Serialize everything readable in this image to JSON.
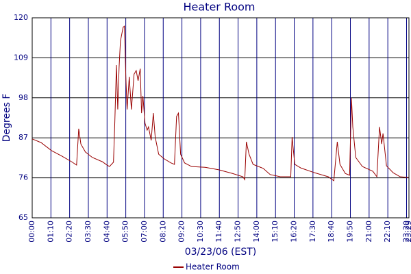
{
  "chart_data": {
    "type": "line",
    "title": "Heater Room",
    "x_label": "03/23/06 (EST)",
    "y_label": "Degrees F",
    "x": [
      0,
      33,
      72,
      110,
      148,
      166,
      174,
      182,
      199,
      225,
      263,
      276,
      289,
      304,
      309,
      315,
      320,
      325,
      330,
      340,
      345,
      350,
      355,
      363,
      371,
      381,
      389,
      396,
      404,
      409,
      414,
      422,
      430,
      435,
      445,
      453,
      460,
      473,
      494,
      519,
      532,
      540,
      547,
      555,
      570,
      596,
      647,
      698,
      749,
      788,
      795,
      801,
      811,
      826,
      864,
      890,
      928,
      967,
      972,
      982,
      1005,
      1056,
      1107,
      1128,
      1141,
      1151,
      1171,
      1187,
      1194,
      1199,
      1210,
      1235,
      1274,
      1289,
      1299,
      1307,
      1312,
      1325,
      1350,
      1376,
      1407
    ],
    "series": [
      {
        "name": "Heater Room",
        "color": "#990000",
        "values": [
          86.7,
          85.7,
          83.5,
          82,
          80.4,
          79.5,
          89.5,
          85.3,
          83.1,
          81.6,
          80.4,
          79.7,
          79.1,
          80.3,
          91.4,
          107,
          94.8,
          106.4,
          113.6,
          117.4,
          117.7,
          104.2,
          94.8,
          103.8,
          94.8,
          104.5,
          105.5,
          102.7,
          106,
          93.8,
          98.5,
          91,
          89.1,
          90,
          86.3,
          93.8,
          87.2,
          82.5,
          81.2,
          80.1,
          79.7,
          92.9,
          93.8,
          82.5,
          80.1,
          79.1,
          78.9,
          78.2,
          77.2,
          76.3,
          75.5,
          85.9,
          82.5,
          79.7,
          78.6,
          76.9,
          76.3,
          76.3,
          87.2,
          79.7,
          78.7,
          77.4,
          76.3,
          75.2,
          85.9,
          79.7,
          77.2,
          76.7,
          98,
          90,
          81.6,
          79.1,
          77.8,
          76.3,
          90,
          85.3,
          88.2,
          79.3,
          77.4,
          76.3,
          76.1
        ]
      }
    ],
    "xlim": [
      0,
      1409
    ],
    "xticks": [
      {
        "value": 0,
        "label": "00:00"
      },
      {
        "value": 70,
        "label": "01:10"
      },
      {
        "value": 140,
        "label": "02:20"
      },
      {
        "value": 210,
        "label": "03:30"
      },
      {
        "value": 280,
        "label": "04:40"
      },
      {
        "value": 350,
        "label": "05:50"
      },
      {
        "value": 420,
        "label": "07:00"
      },
      {
        "value": 490,
        "label": "08:10"
      },
      {
        "value": 560,
        "label": "09:20"
      },
      {
        "value": 630,
        "label": "10:30"
      },
      {
        "value": 700,
        "label": "11:40"
      },
      {
        "value": 770,
        "label": "12:50"
      },
      {
        "value": 840,
        "label": "14:00"
      },
      {
        "value": 910,
        "label": "15:10"
      },
      {
        "value": 980,
        "label": "16:20"
      },
      {
        "value": 1050,
        "label": "17:30"
      },
      {
        "value": 1120,
        "label": "18:40"
      },
      {
        "value": 1190,
        "label": "19:50"
      },
      {
        "value": 1260,
        "label": "21:00"
      },
      {
        "value": 1330,
        "label": "22:10"
      },
      {
        "value": 1400,
        "label": "23:20"
      },
      {
        "value": 1409,
        "label": "23:29"
      }
    ],
    "ylim": [
      65,
      120
    ],
    "yticks": [
      65,
      76,
      87,
      98,
      109,
      120
    ],
    "grid": true
  }
}
